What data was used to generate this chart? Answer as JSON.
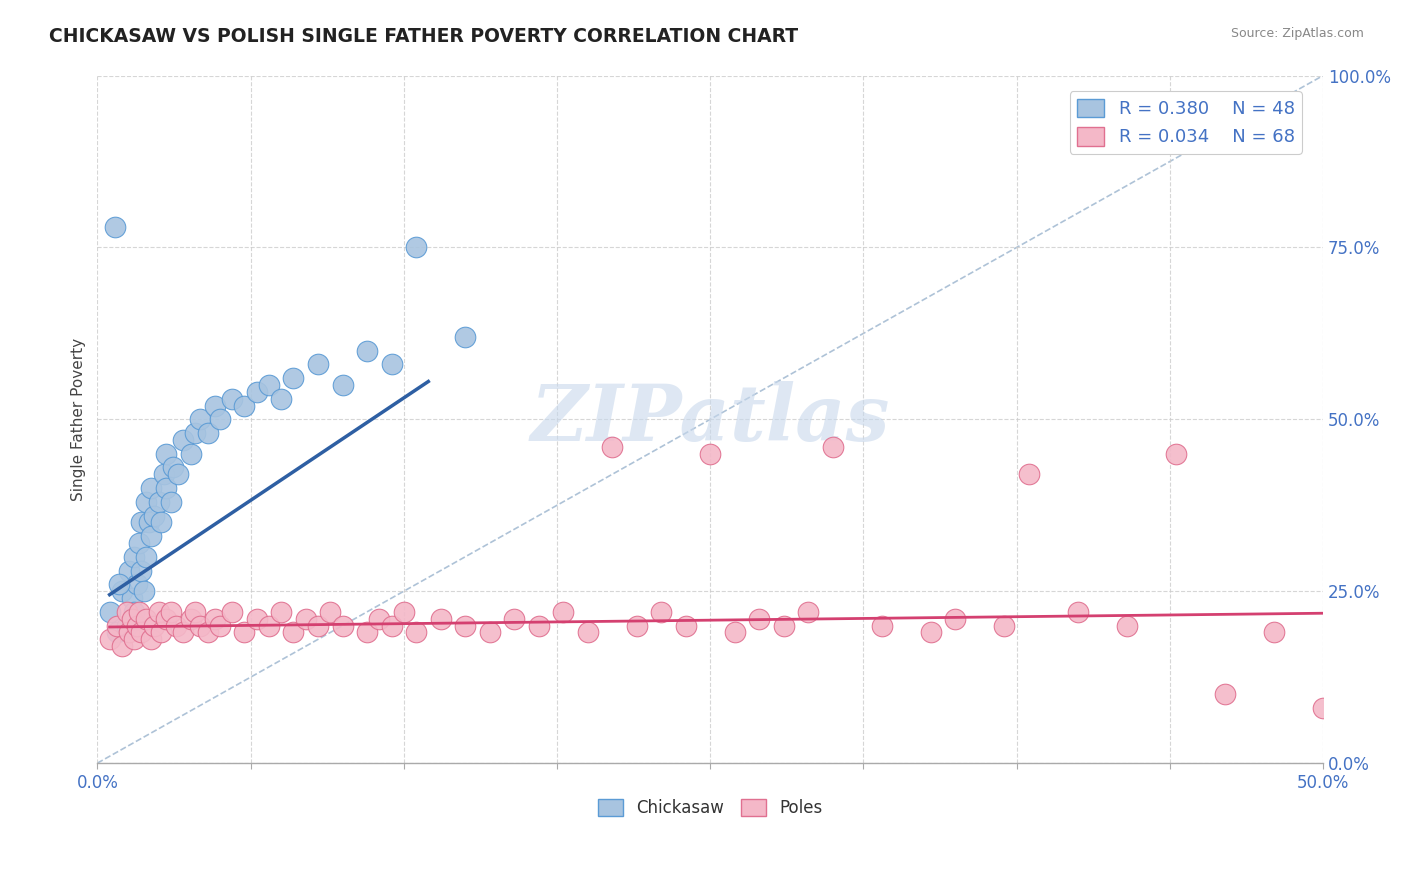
{
  "title": "CHICKASAW VS POLISH SINGLE FATHER POVERTY CORRELATION CHART",
  "source_text": "Source: ZipAtlas.com",
  "ylabel": "Single Father Poverty",
  "xmin": 0.0,
  "xmax": 0.5,
  "ymin": 0.0,
  "ymax": 1.0,
  "chickasaw_R": 0.38,
  "chickasaw_N": 48,
  "poles_R": 0.034,
  "poles_N": 68,
  "chickasaw_color": "#a8c4e0",
  "chickasaw_edge_color": "#5b9bd5",
  "poles_color": "#f4b8c8",
  "poles_edge_color": "#e07090",
  "blue_line_color": "#2e5fa3",
  "pink_line_color": "#d44070",
  "ref_line_color": "#a0b8d0",
  "watermark_color": "#c8d8ec",
  "legend_box_blue": "#a8c4e0",
  "legend_box_pink": "#f4b8c8",
  "chickasaw_x": [
    0.005,
    0.008,
    0.01,
    0.012,
    0.013,
    0.014,
    0.015,
    0.015,
    0.016,
    0.017,
    0.018,
    0.018,
    0.019,
    0.02,
    0.02,
    0.021,
    0.022,
    0.022,
    0.023,
    0.025,
    0.026,
    0.027,
    0.028,
    0.028,
    0.03,
    0.031,
    0.033,
    0.035,
    0.038,
    0.04,
    0.042,
    0.045,
    0.048,
    0.05,
    0.055,
    0.06,
    0.065,
    0.07,
    0.075,
    0.08,
    0.09,
    0.1,
    0.11,
    0.12,
    0.13,
    0.15,
    0.007,
    0.009
  ],
  "chickasaw_y": [
    0.22,
    0.19,
    0.25,
    0.2,
    0.28,
    0.24,
    0.22,
    0.3,
    0.26,
    0.32,
    0.28,
    0.35,
    0.25,
    0.3,
    0.38,
    0.35,
    0.33,
    0.4,
    0.36,
    0.38,
    0.35,
    0.42,
    0.4,
    0.45,
    0.38,
    0.43,
    0.42,
    0.47,
    0.45,
    0.48,
    0.5,
    0.48,
    0.52,
    0.5,
    0.53,
    0.52,
    0.54,
    0.55,
    0.53,
    0.56,
    0.58,
    0.55,
    0.6,
    0.58,
    0.75,
    0.62,
    0.78,
    0.26
  ],
  "poles_x": [
    0.005,
    0.008,
    0.01,
    0.012,
    0.013,
    0.014,
    0.015,
    0.016,
    0.017,
    0.018,
    0.02,
    0.022,
    0.023,
    0.025,
    0.026,
    0.028,
    0.03,
    0.032,
    0.035,
    0.038,
    0.04,
    0.042,
    0.045,
    0.048,
    0.05,
    0.055,
    0.06,
    0.065,
    0.07,
    0.075,
    0.08,
    0.085,
    0.09,
    0.095,
    0.1,
    0.11,
    0.115,
    0.12,
    0.125,
    0.13,
    0.14,
    0.15,
    0.16,
    0.17,
    0.18,
    0.19,
    0.2,
    0.21,
    0.22,
    0.23,
    0.24,
    0.25,
    0.26,
    0.27,
    0.28,
    0.29,
    0.3,
    0.32,
    0.34,
    0.35,
    0.37,
    0.38,
    0.4,
    0.42,
    0.44,
    0.46,
    0.48,
    0.5
  ],
  "poles_y": [
    0.18,
    0.2,
    0.17,
    0.22,
    0.19,
    0.21,
    0.18,
    0.2,
    0.22,
    0.19,
    0.21,
    0.18,
    0.2,
    0.22,
    0.19,
    0.21,
    0.22,
    0.2,
    0.19,
    0.21,
    0.22,
    0.2,
    0.19,
    0.21,
    0.2,
    0.22,
    0.19,
    0.21,
    0.2,
    0.22,
    0.19,
    0.21,
    0.2,
    0.22,
    0.2,
    0.19,
    0.21,
    0.2,
    0.22,
    0.19,
    0.21,
    0.2,
    0.19,
    0.21,
    0.2,
    0.22,
    0.19,
    0.46,
    0.2,
    0.22,
    0.2,
    0.45,
    0.19,
    0.21,
    0.2,
    0.22,
    0.46,
    0.2,
    0.19,
    0.21,
    0.2,
    0.42,
    0.22,
    0.2,
    0.45,
    0.1,
    0.19,
    0.08
  ],
  "blue_line_x": [
    0.005,
    0.135
  ],
  "blue_line_y": [
    0.245,
    0.555
  ],
  "pink_line_x": [
    0.005,
    0.5
  ],
  "pink_line_y": [
    0.198,
    0.218
  ]
}
